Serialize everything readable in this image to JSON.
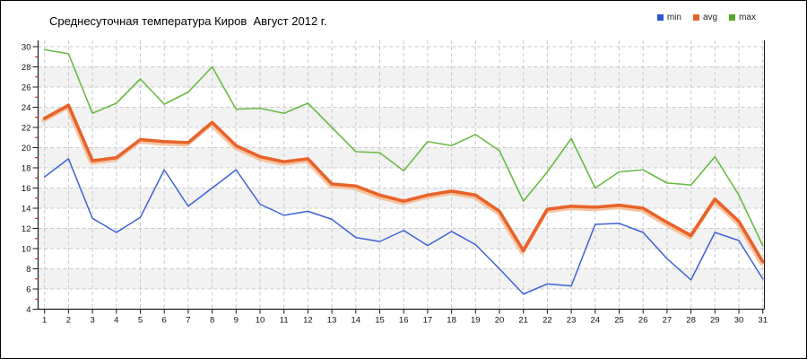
{
  "title": "Среднесуточная температура Киров  Август 2012 г.",
  "legend": {
    "items": [
      {
        "label": "min",
        "color": "#2e55cc"
      },
      {
        "label": "avg",
        "color": "#e8622a"
      },
      {
        "label": "max",
        "color": "#55a62f"
      }
    ]
  },
  "axes": {
    "y_tick_labels": [
      "30",
      "28",
      "26",
      "24",
      "22",
      "20",
      "18",
      "16",
      "14",
      "12",
      "10",
      "8",
      "6",
      "4"
    ],
    "x_tick_labels": [
      "1",
      "2",
      "3",
      "4",
      "5",
      "6",
      "7",
      "8",
      "9",
      "10",
      "11",
      "12",
      "13",
      "14",
      "15",
      "16",
      "17",
      "18",
      "19",
      "20",
      "21",
      "22",
      "23",
      "24",
      "25",
      "26",
      "27",
      "28",
      "29",
      "30",
      "31"
    ],
    "major_tick_color": "#1a1a1a",
    "minor_tick_color": "#e00000"
  },
  "chart_data": {
    "type": "line",
    "title": "Среднесуточная температура Киров  Август 2012 г.",
    "x": [
      1,
      2,
      3,
      4,
      5,
      6,
      7,
      8,
      9,
      10,
      11,
      12,
      13,
      14,
      15,
      16,
      17,
      18,
      19,
      20,
      21,
      22,
      23,
      24,
      25,
      26,
      27,
      28,
      29,
      30,
      31
    ],
    "series": [
      {
        "name": "min",
        "color": "#3e61d5",
        "line_width": 1.5,
        "values": [
          17.1,
          18.9,
          13.0,
          11.6,
          13.1,
          17.8,
          14.2,
          16.0,
          17.8,
          14.4,
          13.3,
          13.7,
          12.9,
          11.1,
          10.7,
          11.8,
          10.3,
          11.7,
          10.4,
          8.0,
          5.5,
          6.5,
          6.3,
          12.4,
          12.5,
          11.6,
          9.0,
          6.9,
          11.6,
          10.8,
          7.0
        ]
      },
      {
        "name": "avg",
        "color": "#e8622a",
        "halo_color": "#f5bb92",
        "line_width": 3.6,
        "values": [
          22.9,
          24.2,
          18.7,
          19.0,
          20.8,
          20.6,
          20.5,
          22.5,
          20.2,
          19.1,
          18.6,
          18.9,
          16.4,
          16.2,
          15.3,
          14.7,
          15.3,
          15.7,
          15.3,
          13.7,
          9.8,
          13.9,
          14.2,
          14.1,
          14.3,
          14.0,
          12.6,
          11.3,
          14.9,
          12.7,
          8.7
        ]
      },
      {
        "name": "max",
        "color": "#6ab944",
        "line_width": 1.6,
        "values": [
          29.7,
          29.3,
          23.4,
          24.4,
          26.8,
          24.3,
          25.5,
          28.0,
          23.8,
          23.9,
          23.4,
          24.4,
          22.0,
          19.6,
          19.5,
          17.7,
          20.6,
          20.2,
          21.3,
          19.7,
          14.7,
          17.6,
          20.9,
          16.0,
          17.6,
          17.8,
          16.5,
          16.3,
          19.1,
          15.3,
          10.3
        ]
      }
    ],
    "ylim": [
      4,
      30
    ],
    "ytick_step": 2,
    "xlabel": "",
    "ylabel": "",
    "grid": "dashed both axes",
    "grid_color": "#c9c9c9",
    "band_color": "#f2f2f2",
    "legend_position": "top-right",
    "legend_entries": [
      "min",
      "avg",
      "max"
    ]
  }
}
